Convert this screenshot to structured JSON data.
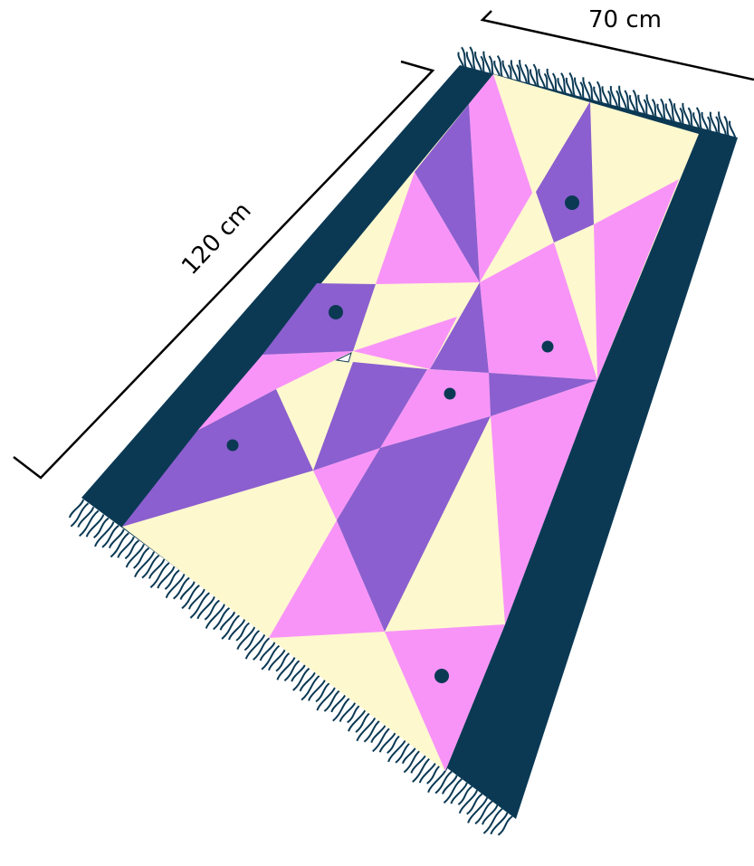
{
  "dimensions": {
    "width_label": "70 cm",
    "length_label": "120 cm"
  },
  "colors": {
    "border": "#0b3954",
    "yellow": "#fef8cf",
    "pink": "#f894f8",
    "purple": "#8b5fcf",
    "dot": "#0b3954",
    "fringe": "#0b3954",
    "dimension_line": "#000000"
  },
  "rug": {
    "fringe_ends": 2,
    "dot_count": 6
  }
}
